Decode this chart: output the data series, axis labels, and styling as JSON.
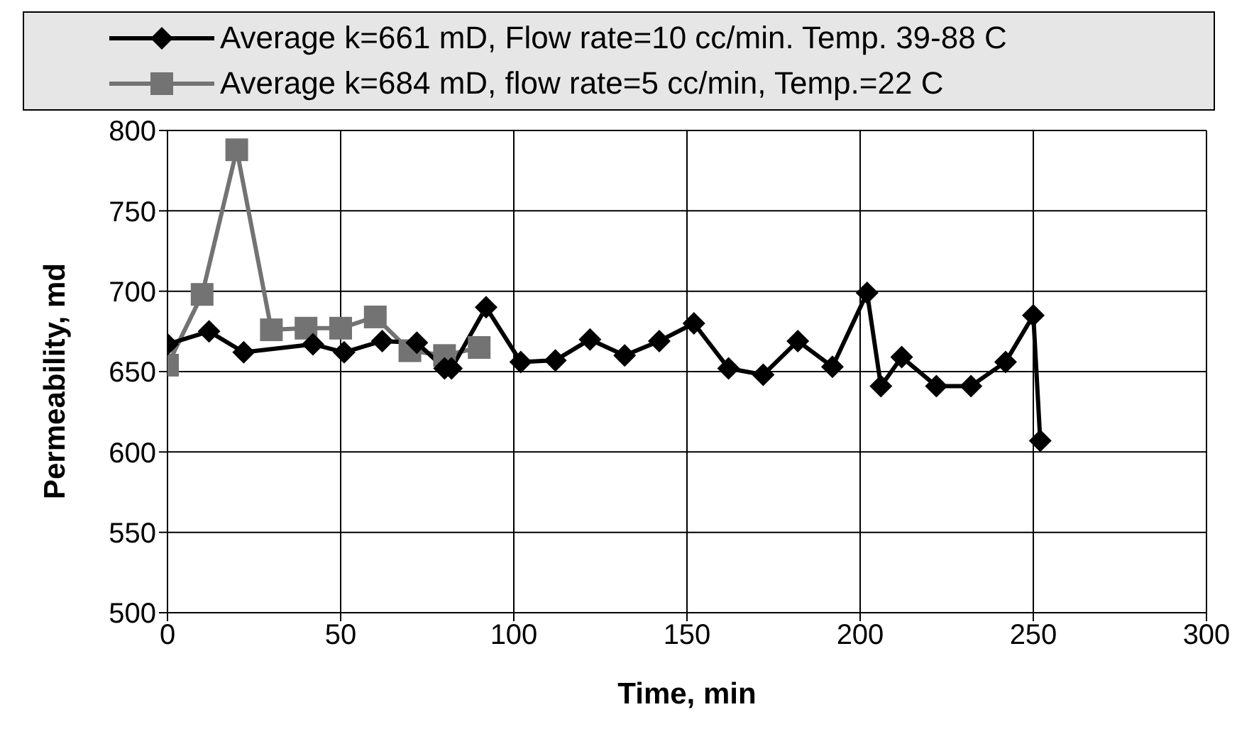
{
  "chart_data": {
    "type": "line",
    "xlabel": "Time, min",
    "ylabel": "Permeability, md",
    "xlim": [
      0,
      300
    ],
    "xticks": [
      0,
      50,
      100,
      150,
      200,
      250,
      300
    ],
    "ylim": [
      500,
      800
    ],
    "yticks": [
      500,
      550,
      600,
      650,
      700,
      750,
      800
    ],
    "grid": true,
    "legend": "top",
    "series": [
      {
        "name": "Average k=661 mD, Flow rate=10 cc/min. Temp. 39-88 C",
        "color": "#000000",
        "marker": "diamond",
        "x": [
          0,
          12,
          22,
          42,
          51,
          62,
          72,
          80,
          82,
          92,
          102,
          112,
          122,
          132,
          142,
          152,
          162,
          172,
          182,
          192,
          202,
          206,
          212,
          222,
          232,
          242,
          250,
          252
        ],
        "values": [
          667,
          675,
          662,
          667,
          662,
          669,
          668,
          652,
          652,
          690,
          656,
          657,
          670,
          660,
          669,
          680,
          652,
          648,
          669,
          653,
          699,
          641,
          659,
          641,
          641,
          656,
          685,
          607
        ]
      },
      {
        "name": "Average k=684 mD, flow rate=5 cc/min, Temp.=22 C",
        "color": "#737373",
        "marker": "square",
        "x": [
          0,
          10,
          20,
          30,
          40,
          50,
          60,
          70,
          80,
          90
        ],
        "values": [
          654,
          698,
          788,
          676,
          677,
          677,
          684,
          663,
          660,
          665
        ]
      }
    ]
  }
}
